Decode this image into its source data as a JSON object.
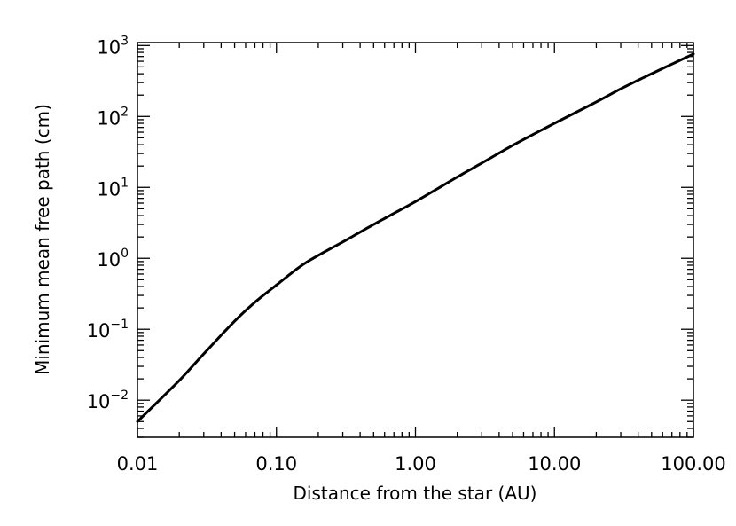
{
  "chart_data": {
    "type": "line",
    "title": "",
    "xlabel": "Distance from the star (AU)",
    "ylabel": "Minimum mean free path (cm)",
    "xscale": "log",
    "yscale": "log",
    "xlim": [
      0.01,
      100
    ],
    "ylim": [
      0.003,
      1100
    ],
    "grid": false,
    "legend": "none",
    "line_color": "#000000",
    "x_ticks": [
      {
        "value": 0.01,
        "label": "0.01"
      },
      {
        "value": 0.1,
        "label": "0.10"
      },
      {
        "value": 1,
        "label": "1.00"
      },
      {
        "value": 10,
        "label": "10.00"
      },
      {
        "value": 100,
        "label": "100.00"
      }
    ],
    "y_ticks": [
      {
        "value": 0.01,
        "base": "10",
        "exp": "−2"
      },
      {
        "value": 0.1,
        "base": "10",
        "exp": "−1"
      },
      {
        "value": 1,
        "base": "10",
        "exp": "0"
      },
      {
        "value": 10,
        "base": "10",
        "exp": "1"
      },
      {
        "value": 100,
        "base": "10",
        "exp": "2"
      },
      {
        "value": 1000,
        "base": "10",
        "exp": "3"
      }
    ],
    "series": [
      {
        "x": [
          0.01,
          0.02,
          0.03,
          0.05,
          0.07,
          0.1,
          0.15,
          0.2,
          0.3,
          0.5,
          0.7,
          1,
          2,
          3,
          5,
          10,
          20,
          30,
          50,
          100
        ],
        "y": [
          0.005,
          0.019,
          0.045,
          0.13,
          0.24,
          0.42,
          0.78,
          1.1,
          1.7,
          3.0,
          4.3,
          6.3,
          14,
          22,
          39,
          80,
          160,
          245,
          400,
          760
        ]
      }
    ]
  }
}
